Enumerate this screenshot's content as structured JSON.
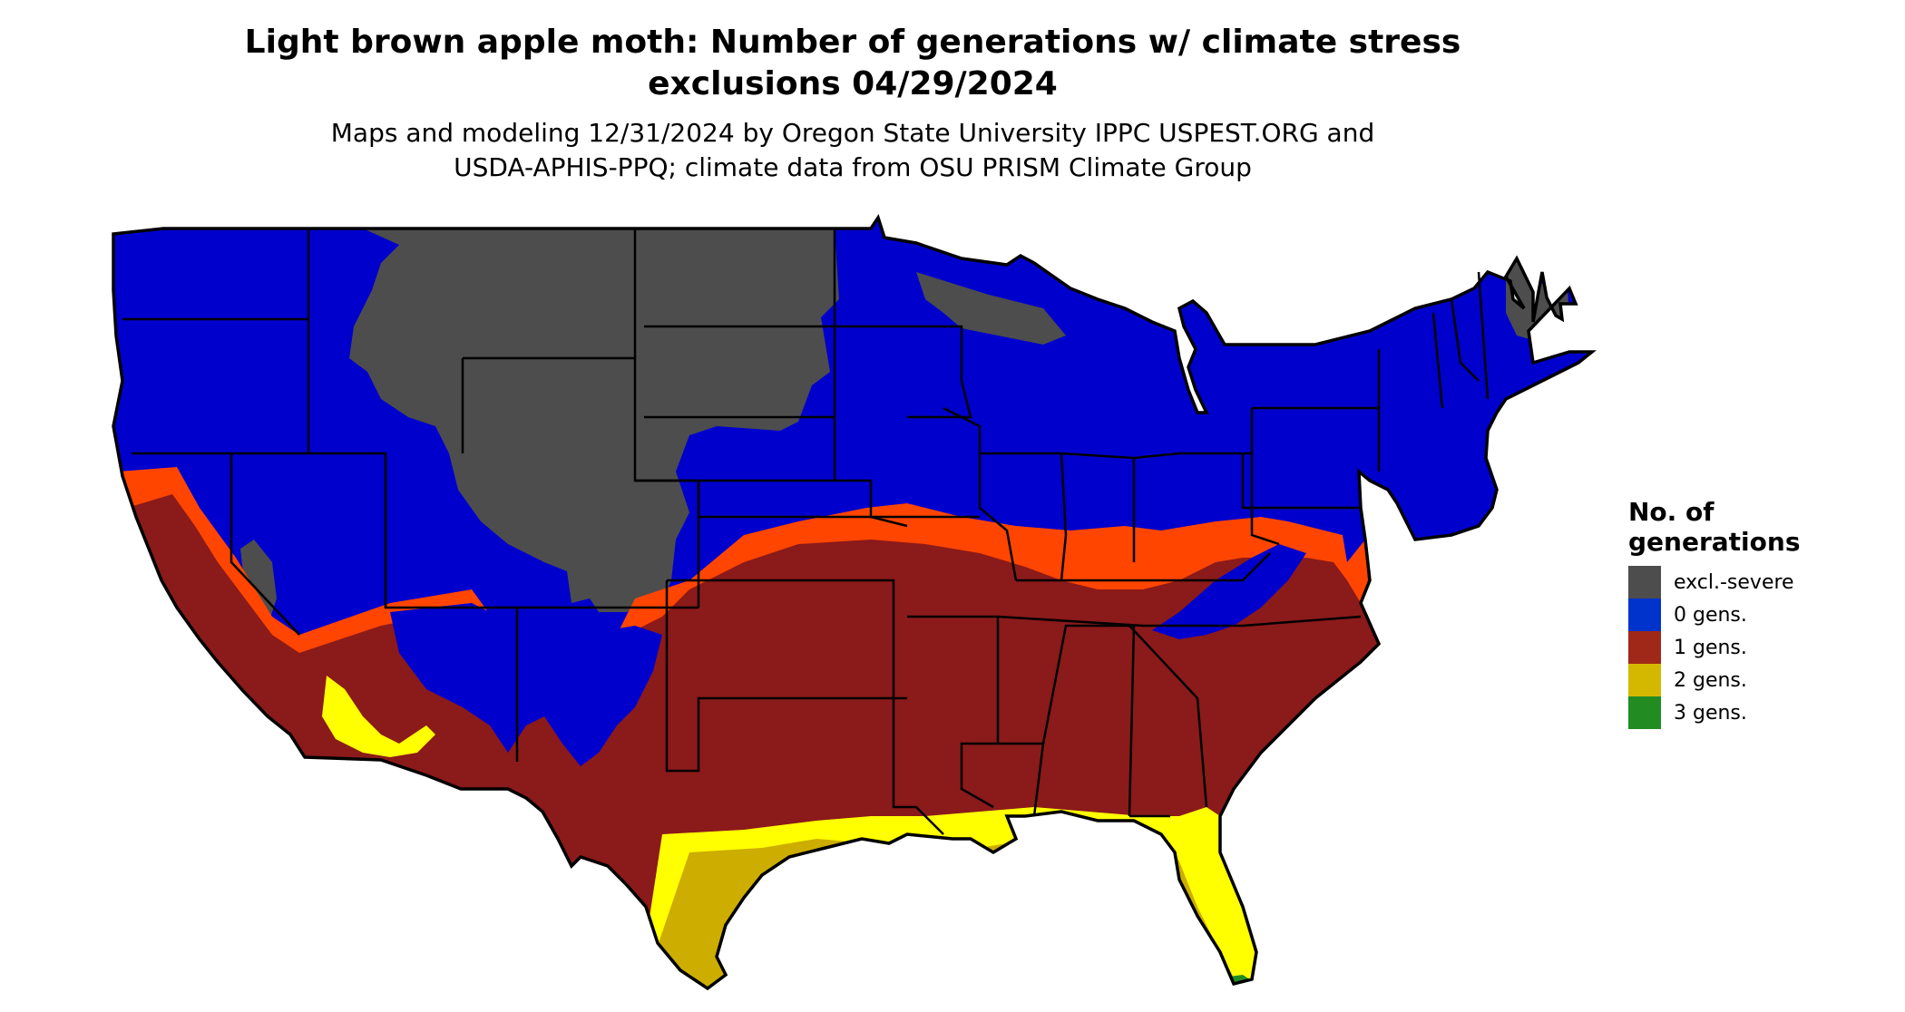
{
  "title": {
    "line1": "Light brown apple moth: Number of generations w/ climate stress",
    "line2": "exclusions 04/29/2024"
  },
  "subtitle": {
    "line1": "Maps and modeling 12/31/2024 by Oregon State University IPPC USPEST.ORG and",
    "line2": "USDA-APHIS-PPQ; climate data from OSU PRISM Climate Group"
  },
  "legend": {
    "title_line1": "No. of",
    "title_line2": "generations",
    "items": [
      {
        "label": "excl.-severe",
        "color": "#4d4d4d"
      },
      {
        "label": "0 gens.",
        "color": "#0033cc"
      },
      {
        "label": "1 gens.",
        "color": "#a02818"
      },
      {
        "label": "2 gens.",
        "color": "#d4b800"
      },
      {
        "label": "3 gens.",
        "color": "#228b22"
      }
    ]
  },
  "map_colors": {
    "excluded": "#4d4d4d",
    "zero": "#0000cd",
    "one": "#8b1a1a",
    "one_transition": "#ff4500",
    "two": "#cdad00",
    "two_transition": "#ffff00",
    "three": "#006400",
    "border": "#000000"
  }
}
